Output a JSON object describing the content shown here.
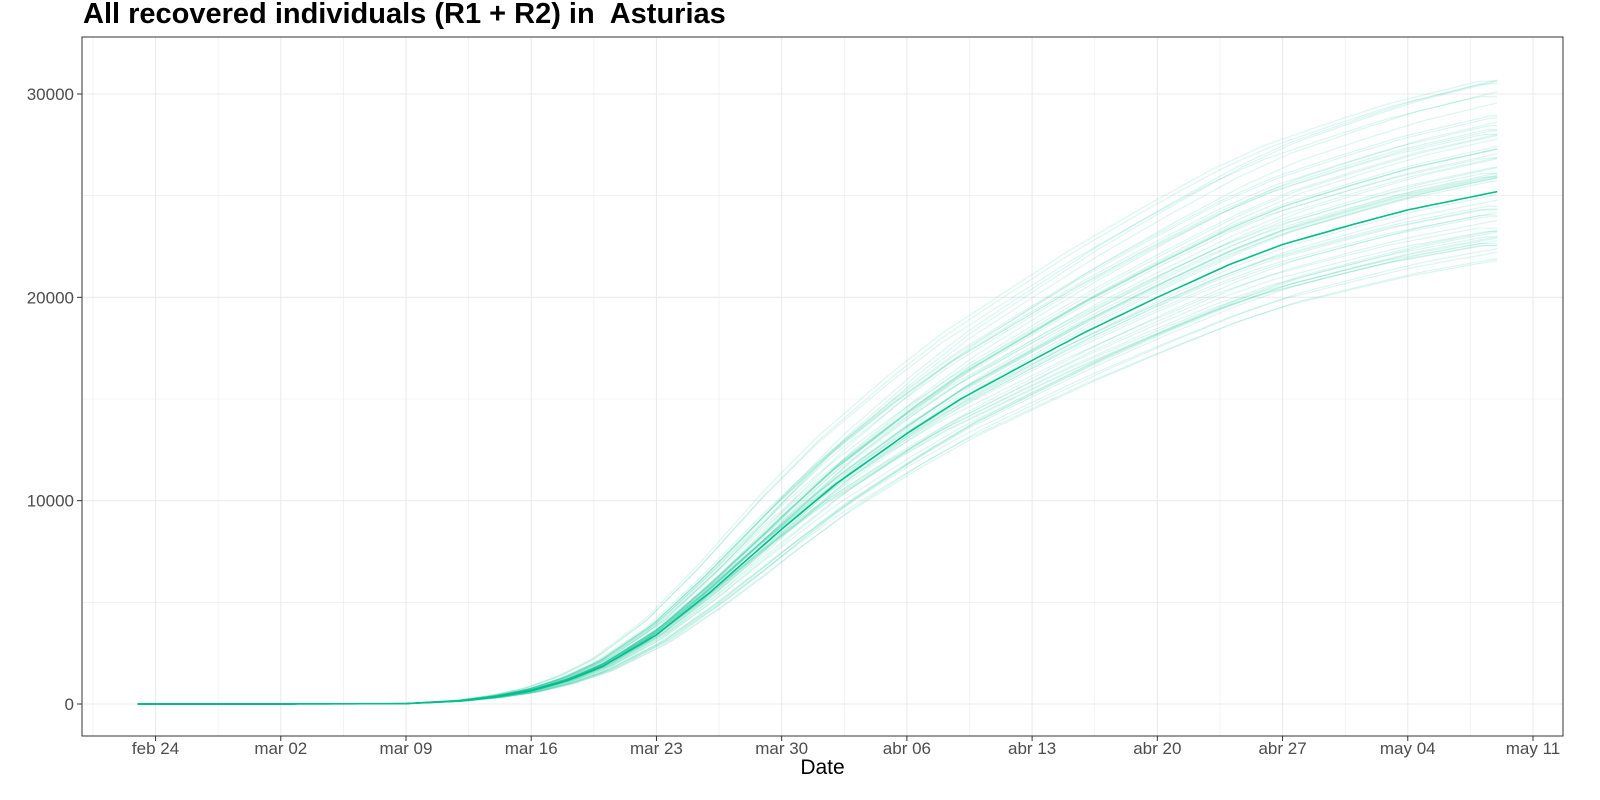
{
  "chart_data": {
    "type": "line",
    "title": "All recovered individuals (R1 + R2) in  Asturias",
    "xlabel": "Date",
    "ylabel": "",
    "grid": true,
    "legend": "none",
    "colors": {
      "line": "#00BF8C",
      "ensemble": "#00BF8C",
      "grid": "#ebebeb",
      "border": "#333333"
    },
    "x_range": [
      "2020-02-20",
      "2020-05-11"
    ],
    "ylim": [
      -1600,
      32000
    ],
    "x_ticks": [
      {
        "date": "2020-02-24",
        "label": "feb 24"
      },
      {
        "date": "2020-03-02",
        "label": "mar 02"
      },
      {
        "date": "2020-03-09",
        "label": "mar 09"
      },
      {
        "date": "2020-03-16",
        "label": "mar 16"
      },
      {
        "date": "2020-03-23",
        "label": "mar 23"
      },
      {
        "date": "2020-03-30",
        "label": "mar 30"
      },
      {
        "date": "2020-04-06",
        "label": "abr 06"
      },
      {
        "date": "2020-04-13",
        "label": "abr 13"
      },
      {
        "date": "2020-04-20",
        "label": "abr 20"
      },
      {
        "date": "2020-04-27",
        "label": "abr 27"
      },
      {
        "date": "2020-05-04",
        "label": "may 04"
      },
      {
        "date": "2020-05-11",
        "label": "may 11"
      }
    ],
    "y_ticks": [
      {
        "value": 0,
        "label": "0"
      },
      {
        "value": 10000,
        "label": "10000"
      },
      {
        "value": 20000,
        "label": "20000"
      },
      {
        "value": 30000,
        "label": "30000"
      }
    ],
    "series": [
      {
        "role": "central",
        "x": [
          "2020-02-23",
          "2020-03-02",
          "2020-03-09",
          "2020-03-12",
          "2020-03-14",
          "2020-03-16",
          "2020-03-18",
          "2020-03-20",
          "2020-03-23",
          "2020-03-26",
          "2020-03-30",
          "2020-04-02",
          "2020-04-06",
          "2020-04-09",
          "2020-04-13",
          "2020-04-16",
          "2020-04-20",
          "2020-04-24",
          "2020-04-27",
          "2020-05-01",
          "2020-05-04",
          "2020-05-09"
        ],
        "y": [
          0,
          0,
          20,
          150,
          350,
          650,
          1150,
          1850,
          3400,
          5500,
          8600,
          10800,
          13300,
          15000,
          16900,
          18300,
          20000,
          21600,
          22600,
          23600,
          24300,
          25200
        ]
      }
    ],
    "ensemble": {
      "count": 60,
      "final_values_range": [
        21800,
        31200
      ],
      "x": [
        "2020-02-23",
        "2020-03-09",
        "2020-03-12",
        "2020-03-16",
        "2020-03-20",
        "2020-03-23",
        "2020-03-26",
        "2020-03-30",
        "2020-04-06",
        "2020-04-13",
        "2020-04-20",
        "2020-04-27",
        "2020-05-04",
        "2020-05-09"
      ]
    }
  }
}
